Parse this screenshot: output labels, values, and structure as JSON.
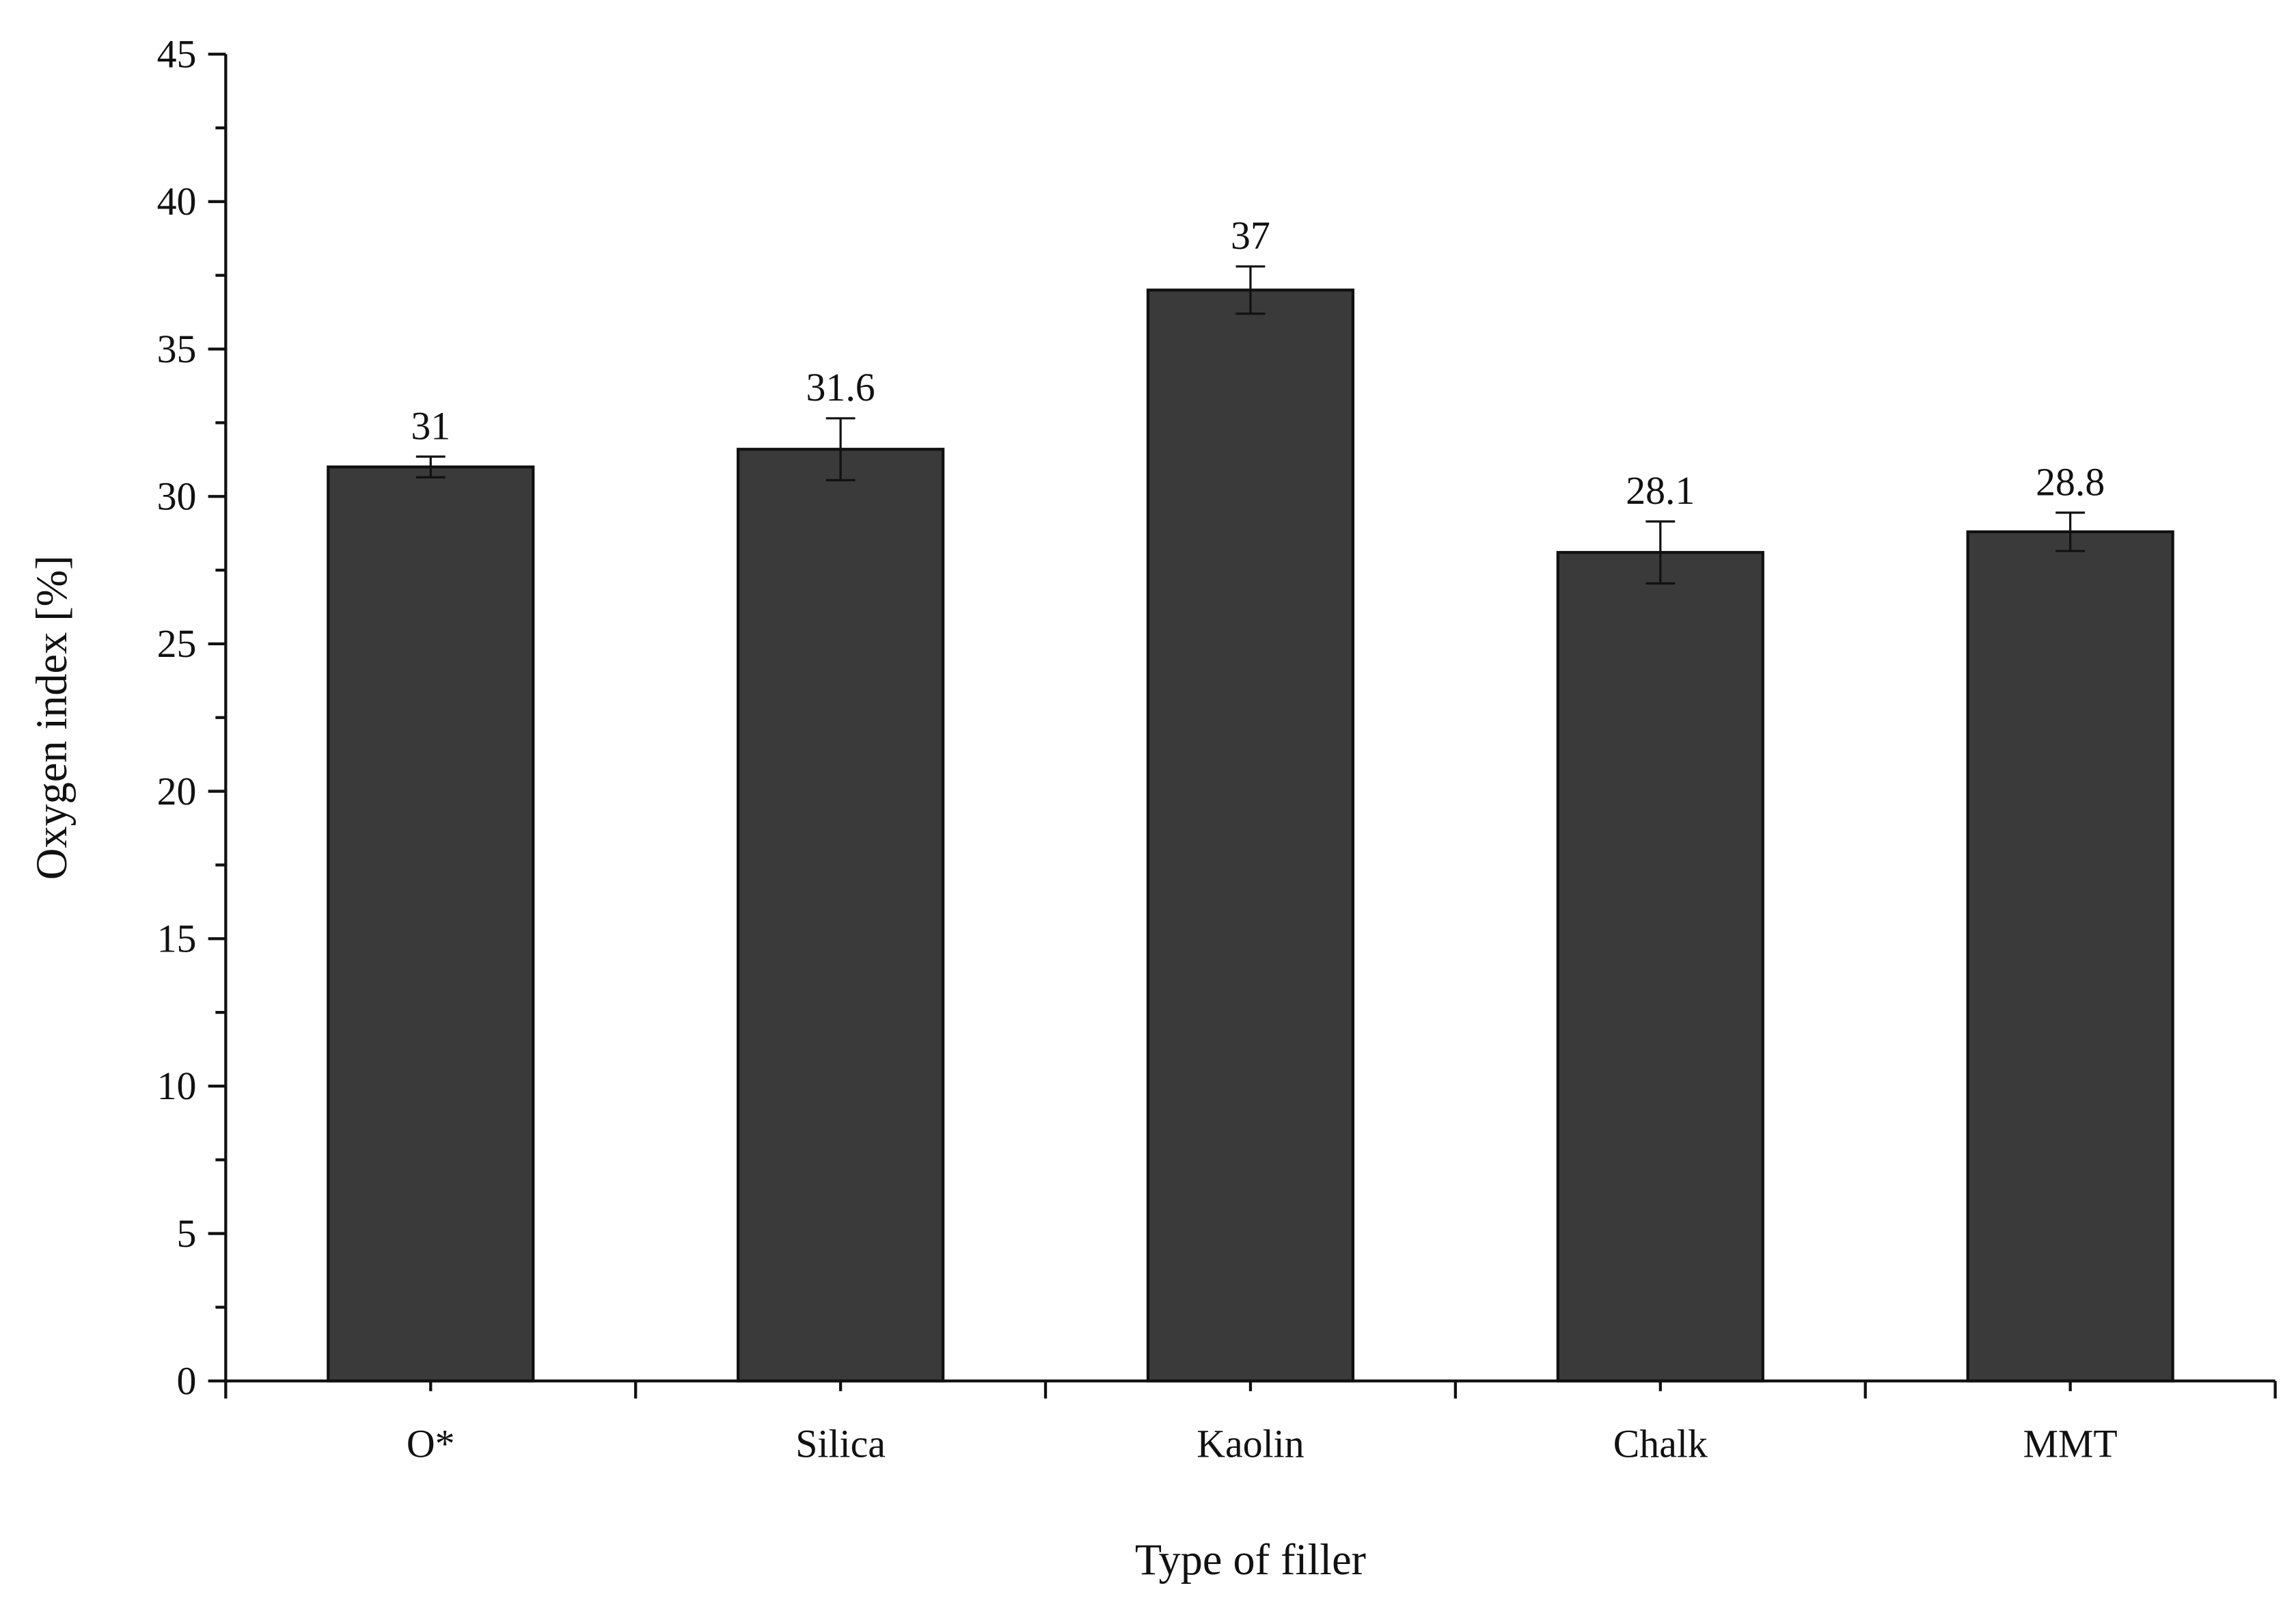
{
  "chart_data": {
    "type": "bar",
    "x_label": "Type of filler",
    "y_label": "Oxygen index [%]",
    "categories": [
      "O*",
      "Silica",
      "Kaolin",
      "Chalk",
      "MMT"
    ],
    "values": [
      31,
      31.6,
      37,
      28.1,
      28.8
    ],
    "errors": [
      0.35,
      1.05,
      0.8,
      1.05,
      0.65
    ],
    "color": "#3a3a3a",
    "ylim": [
      0,
      45
    ],
    "yticks": [
      0,
      5,
      10,
      15,
      20,
      25,
      30,
      35,
      40,
      45
    ],
    "grid": false
  }
}
